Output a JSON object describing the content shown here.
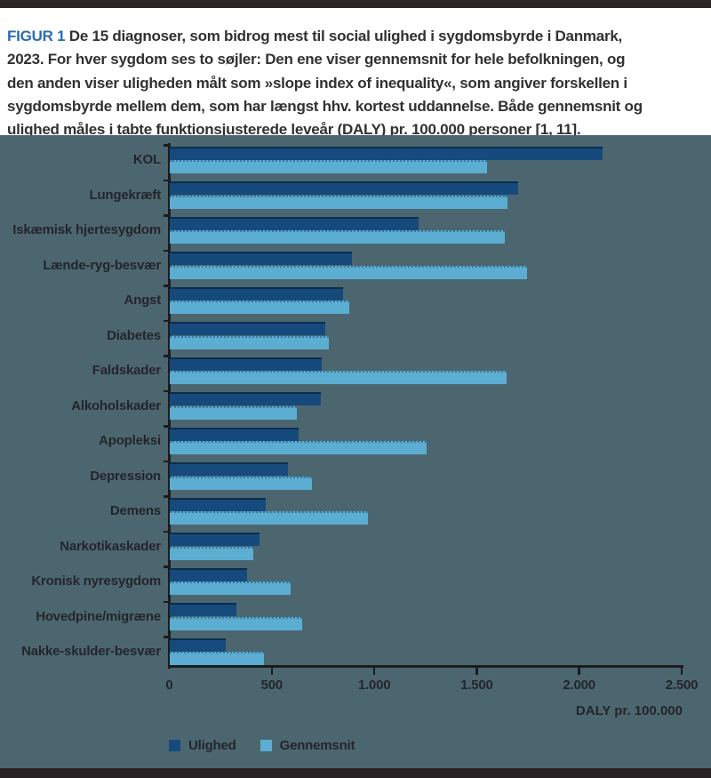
{
  "figure": {
    "label": "FIGUR 1",
    "caption": "De 15 diagnoser, som bidrog mest til social ulighed i sygdomsbyrde i Danmark,\n2023. For hver sygdom ses to søjler: Den ene viser gennemsnit for hele befolkningen, og\nden anden viser uligheden målt som »slope index of inequality«, som angiver forskellen i\nsygdomsbyrde mellem dem, som har længst hhv. kortest uddannelse. Både gennemsnit og\nulighed måles i tabte funktionsjusterede leveår (DALY) pr. 100.000 personer [1, 11]."
  },
  "chart_data": {
    "type": "bar",
    "orientation": "horizontal",
    "categories": [
      "KOL",
      "Lungekræft",
      "Iskæmisk hjertesygdom",
      "Lænde-ryg-besvær",
      "Angst",
      "Diabetes",
      "Faldskader",
      "Alkoholskader",
      "Apopleksi",
      "Depression",
      "Demens",
      "Narkotikaskader",
      "Kronisk nyresygdom",
      "Hovedpine/migræne",
      "Nakke-skulder-besvær"
    ],
    "series": [
      {
        "name": "Ulighed",
        "color": "#164A7D",
        "values": [
          2110,
          1700,
          1215,
          890,
          845,
          757,
          740,
          737,
          630,
          578,
          470,
          440,
          378,
          324,
          273
        ]
      },
      {
        "name": "Gennemsnit",
        "color": "#5CADD2",
        "values": [
          1550,
          1650,
          1635,
          1745,
          875,
          775,
          1645,
          618,
          1255,
          695,
          965,
          408,
          590,
          645,
          460
        ]
      }
    ],
    "xlim": [
      0,
      2500
    ],
    "x_tick_values": [
      0,
      500,
      1000,
      1500,
      2000,
      2500
    ],
    "x_tick_labels": [
      "0",
      "500",
      "1.000",
      "1.500",
      "2.000",
      "2.500"
    ],
    "axis_caption": "DALY pr. 100.000",
    "legend_position": "bottom",
    "grid": false
  },
  "colors": {
    "page_background": "#FFFFFF",
    "panel_background": "#4C6670",
    "top_border": "#2B2526",
    "bottom_border": "#292224",
    "figure_label": "#2B6CB4",
    "caption_text": "#333032",
    "axis": "#1B1C1E",
    "chart_text": "#24252A"
  }
}
